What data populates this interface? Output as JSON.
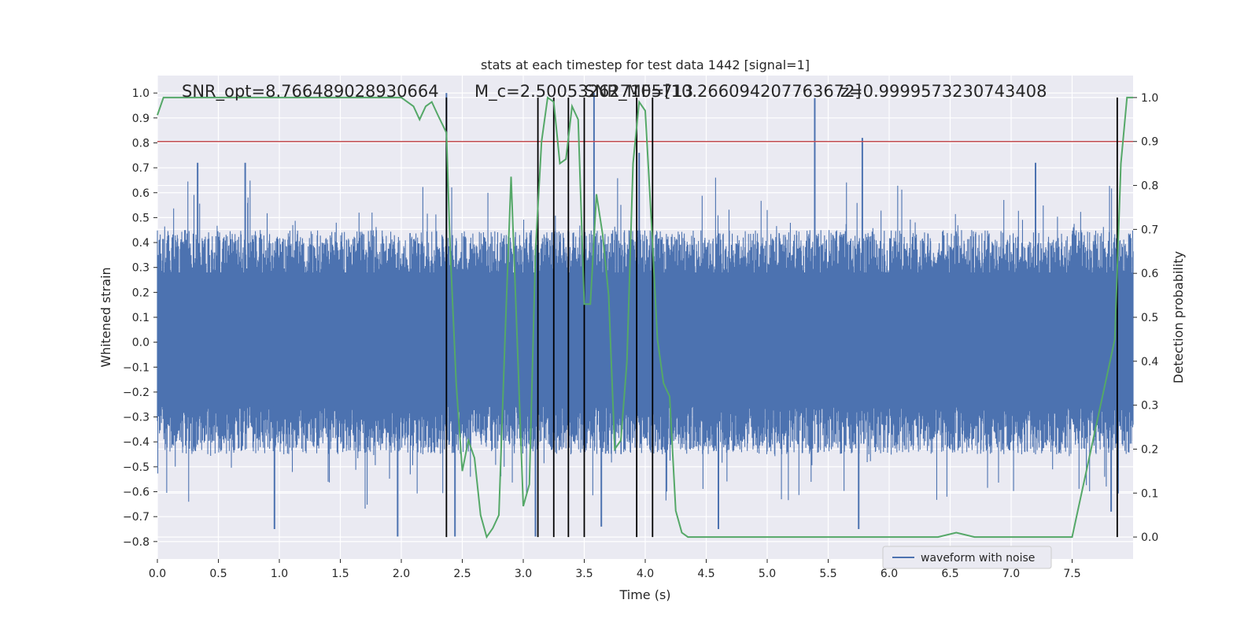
{
  "chart_data": {
    "type": "line",
    "title": "stats at each timestep for test data 1442 [signal=1]",
    "xlabel": "Time (s)",
    "ylabel": "Whitened strain",
    "y2label": "Detection probability",
    "xlim": [
      0.0,
      8.0
    ],
    "ylim": [
      -0.87,
      1.07
    ],
    "y2lim": [
      -0.05,
      1.05
    ],
    "xticks": [
      "0.0",
      "0.5",
      "1.0",
      "1.5",
      "2.0",
      "2.5",
      "3.0",
      "3.5",
      "4.0",
      "4.5",
      "5.0",
      "5.5",
      "6.0",
      "6.5",
      "7.0",
      "7.5"
    ],
    "yticks": [
      "1.0",
      "0.9",
      "0.8",
      "0.7",
      "0.6",
      "0.5",
      "0.4",
      "0.3",
      "0.2",
      "0.1",
      "0.0",
      "−0.1",
      "−0.2",
      "−0.3",
      "−0.4",
      "−0.5",
      "−0.6",
      "−0.7",
      "−0.8"
    ],
    "y2ticks": [
      "1.0",
      "0.9",
      "0.8",
      "0.7",
      "0.6",
      "0.5",
      "0.4",
      "0.3",
      "0.2",
      "0.1",
      "0.0"
    ],
    "grid": true,
    "legend": {
      "placement": "lower-right",
      "entries": [
        "waveform with noise"
      ]
    },
    "colors": {
      "waveform": "#4c72b0",
      "probability": "#55a868",
      "threshold": "#c44e52",
      "markers": "#000000",
      "background": "#eaeaf2",
      "grid": "#ffffff"
    },
    "annotations": [
      {
        "text": "SNR_opt=8.766489028930664",
        "x": 0.2
      },
      {
        "text": "M_c=2.500532627105713",
        "x": 2.6
      },
      {
        "text": "SNR_MF=[10.266094207763672]",
        "x": 3.5
      },
      {
        "text": "z=0.9999573230743408",
        "x": 5.6
      }
    ],
    "series": [
      {
        "name": "waveform with noise",
        "style": "noisy-band",
        "envelope": {
          "typical_max": 0.45,
          "typical_min": -0.45,
          "extreme_max": 1.0,
          "extreme_min": -0.78
        },
        "spikes": [
          {
            "x": 0.33,
            "y": 0.72
          },
          {
            "x": 0.72,
            "y": 0.72
          },
          {
            "x": 0.96,
            "y": -0.75
          },
          {
            "x": 1.97,
            "y": -0.78
          },
          {
            "x": 2.37,
            "y": 1.0
          },
          {
            "x": 2.44,
            "y": -0.78
          },
          {
            "x": 3.1,
            "y": -0.78
          },
          {
            "x": 3.58,
            "y": 1.0
          },
          {
            "x": 3.64,
            "y": -0.74
          },
          {
            "x": 3.95,
            "y": 0.76
          },
          {
            "x": 4.6,
            "y": -0.75
          },
          {
            "x": 5.39,
            "y": 0.98
          },
          {
            "x": 5.75,
            "y": -0.75
          },
          {
            "x": 5.78,
            "y": 0.82
          },
          {
            "x": 7.2,
            "y": 0.72
          },
          {
            "x": 7.82,
            "y": -0.68
          }
        ]
      },
      {
        "name": "detection probability",
        "axis": "right",
        "x": [
          0.0,
          0.05,
          0.1,
          0.5,
          1.0,
          1.5,
          2.0,
          2.1,
          2.15,
          2.2,
          2.25,
          2.3,
          2.37,
          2.4,
          2.45,
          2.5,
          2.55,
          2.6,
          2.65,
          2.7,
          2.75,
          2.8,
          2.85,
          2.9,
          2.95,
          3.0,
          3.05,
          3.1,
          3.15,
          3.2,
          3.25,
          3.3,
          3.35,
          3.4,
          3.45,
          3.5,
          3.55,
          3.6,
          3.65,
          3.7,
          3.75,
          3.8,
          3.85,
          3.9,
          3.95,
          4.0,
          4.05,
          4.1,
          4.15,
          4.2,
          4.25,
          4.3,
          4.35,
          4.4,
          4.5,
          5.0,
          5.5,
          5.6,
          6.0,
          6.4,
          6.55,
          6.7,
          7.0,
          7.2,
          7.5,
          7.85,
          7.9,
          7.95,
          8.0
        ],
        "values": [
          0.96,
          1.0,
          1.0,
          1.0,
          1.0,
          1.0,
          1.0,
          0.98,
          0.95,
          0.98,
          0.99,
          0.96,
          0.92,
          0.66,
          0.35,
          0.15,
          0.22,
          0.18,
          0.05,
          0.0,
          0.02,
          0.05,
          0.45,
          0.82,
          0.45,
          0.07,
          0.12,
          0.65,
          0.9,
          1.0,
          0.99,
          0.85,
          0.86,
          0.98,
          0.95,
          0.53,
          0.53,
          0.78,
          0.69,
          0.55,
          0.2,
          0.22,
          0.4,
          0.85,
          0.99,
          0.97,
          0.72,
          0.45,
          0.35,
          0.32,
          0.06,
          0.01,
          0.0,
          0.0,
          0.0,
          0.0,
          0.0,
          0.0,
          0.0,
          0.0,
          0.01,
          0.0,
          0.0,
          0.0,
          0.0,
          0.45,
          0.85,
          1.0,
          1.0
        ]
      }
    ],
    "threshold_line": {
      "axis": "right",
      "value": 0.9
    },
    "marker_lines_x": [
      2.37,
      3.12,
      3.25,
      3.37,
      3.5,
      3.93,
      4.06,
      7.87
    ]
  }
}
